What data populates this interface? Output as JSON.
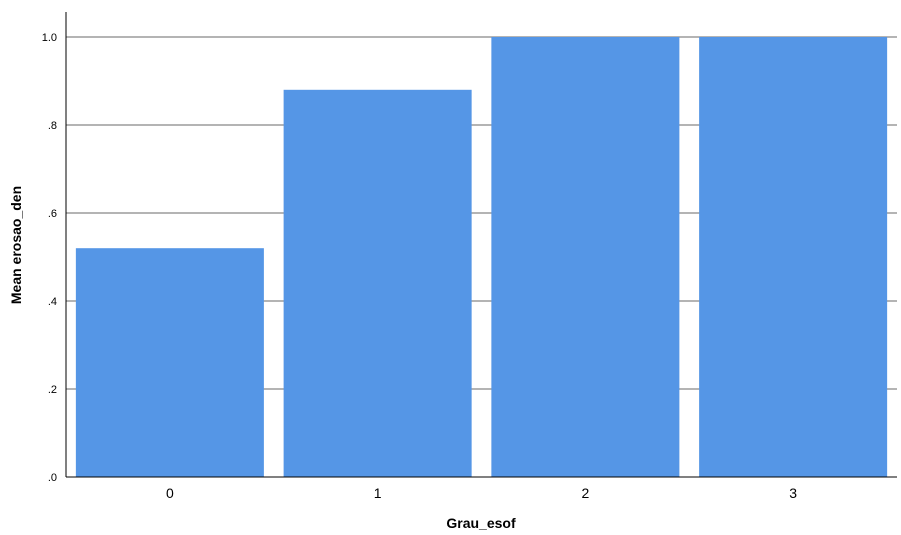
{
  "chart_data": {
    "type": "bar",
    "title": "",
    "xlabel": "Grau_esof",
    "ylabel": "Mean erosao_den",
    "categories": [
      "0",
      "1",
      "2",
      "3"
    ],
    "values": [
      0.52,
      0.88,
      1.0,
      1.0
    ],
    "ylim": [
      0,
      1.0
    ],
    "yticks": [
      0.0,
      0.2,
      0.4,
      0.6,
      0.8,
      1.0
    ],
    "ytick_labels": [
      ".0",
      ".2",
      ".4",
      ".6",
      ".8",
      "1.0"
    ],
    "grid": true,
    "legend": "none",
    "colors": {
      "bar": "#5596E6",
      "grid": "#B4B4B4",
      "axis": "#000000"
    }
  }
}
